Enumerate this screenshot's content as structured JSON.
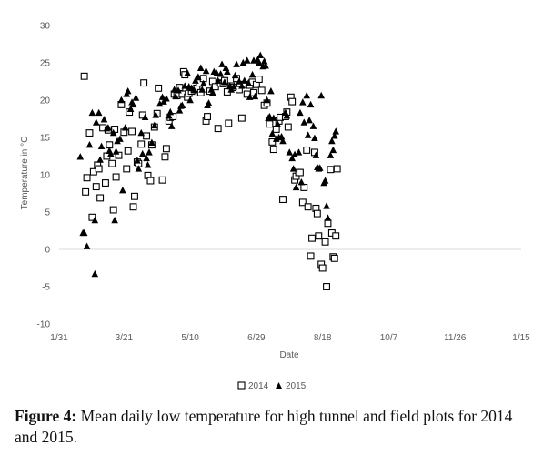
{
  "chart_data": {
    "type": "scatter",
    "title": "",
    "xlabel": "Date",
    "ylabel": "Temperature in °C",
    "xlim": [
      "2015-01-31",
      "2016-01-15"
    ],
    "ylim": [
      -10,
      30
    ],
    "x_tick_labels": [
      "1/31",
      "3/21",
      "5/10",
      "6/29",
      "8/18",
      "10/7",
      "11/26",
      "1/15"
    ],
    "x_tick_dates": [
      "2015-01-31",
      "2015-03-21",
      "2015-05-10",
      "2015-06-29",
      "2015-08-18",
      "2015-10-07",
      "2015-11-26",
      "2016-01-15"
    ],
    "y_ticks": [
      -10,
      -5,
      0,
      5,
      10,
      15,
      20,
      25,
      30
    ],
    "grid": false,
    "legend_position": "bottom",
    "series": [
      {
        "name": "2014",
        "marker": "hollow-square",
        "color": "#000000",
        "points": [
          [
            "2015-02-19",
            23.2
          ],
          [
            "2015-02-20",
            7.7
          ],
          [
            "2015-02-21",
            9.6
          ],
          [
            "2015-02-23",
            15.6
          ],
          [
            "2015-02-25",
            4.3
          ],
          [
            "2015-02-26",
            10.4
          ],
          [
            "2015-02-28",
            8.4
          ],
          [
            "2015-03-01",
            11.3
          ],
          [
            "2015-03-02",
            10.8
          ],
          [
            "2015-03-03",
            6.9
          ],
          [
            "2015-03-05",
            16.3
          ],
          [
            "2015-03-07",
            8.9
          ],
          [
            "2015-03-08",
            12.5
          ],
          [
            "2015-03-09",
            16.0
          ],
          [
            "2015-03-10",
            14.0
          ],
          [
            "2015-03-12",
            11.5
          ],
          [
            "2015-03-13",
            5.3
          ],
          [
            "2015-03-14",
            16.1
          ],
          [
            "2015-03-15",
            9.7
          ],
          [
            "2015-03-17",
            12.6
          ],
          [
            "2015-03-19",
            19.4
          ],
          [
            "2015-03-21",
            15.7
          ],
          [
            "2015-03-23",
            10.8
          ],
          [
            "2015-03-24",
            13.2
          ],
          [
            "2015-03-25",
            18.4
          ],
          [
            "2015-03-27",
            15.8
          ],
          [
            "2015-03-28",
            5.7
          ],
          [
            "2015-03-29",
            7.1
          ],
          [
            "2015-03-31",
            11.7
          ],
          [
            "2015-04-01",
            11.5
          ],
          [
            "2015-04-03",
            14.1
          ],
          [
            "2015-04-04",
            18.0
          ],
          [
            "2015-04-05",
            22.3
          ],
          [
            "2015-04-07",
            15.2
          ],
          [
            "2015-04-08",
            9.9
          ],
          [
            "2015-04-10",
            9.2
          ],
          [
            "2015-04-11",
            14.0
          ],
          [
            "2015-04-13",
            16.4
          ],
          [
            "2015-04-15",
            18.2
          ],
          [
            "2015-04-16",
            21.6
          ],
          [
            "2015-04-19",
            9.3
          ],
          [
            "2015-04-21",
            12.4
          ],
          [
            "2015-04-22",
            13.5
          ],
          [
            "2015-04-24",
            17.2
          ],
          [
            "2015-04-25",
            17.7
          ],
          [
            "2015-04-27",
            17.8
          ],
          [
            "2015-04-28",
            20.8
          ],
          [
            "2015-04-30",
            20.6
          ],
          [
            "2015-05-02",
            21.7
          ],
          [
            "2015-05-04",
            20.8
          ],
          [
            "2015-05-05",
            23.8
          ],
          [
            "2015-05-06",
            23.4
          ],
          [
            "2015-05-08",
            20.4
          ],
          [
            "2015-05-09",
            20.9
          ],
          [
            "2015-05-11",
            21.2
          ],
          [
            "2015-05-13",
            21.5
          ],
          [
            "2015-05-15",
            21.6
          ],
          [
            "2015-05-17",
            22.3
          ],
          [
            "2015-05-18",
            21.0
          ],
          [
            "2015-05-20",
            22.9
          ],
          [
            "2015-05-22",
            17.2
          ],
          [
            "2015-05-23",
            17.8
          ],
          [
            "2015-05-25",
            21.2
          ],
          [
            "2015-05-27",
            22.5
          ],
          [
            "2015-05-29",
            21.8
          ],
          [
            "2015-05-31",
            16.2
          ],
          [
            "2015-06-02",
            22.3
          ],
          [
            "2015-06-04",
            22.2
          ],
          [
            "2015-06-05",
            22.6
          ],
          [
            "2015-06-07",
            21.1
          ],
          [
            "2015-06-08",
            16.9
          ],
          [
            "2015-06-10",
            21.9
          ],
          [
            "2015-06-12",
            21.7
          ],
          [
            "2015-06-14",
            22.9
          ],
          [
            "2015-06-16",
            21.4
          ],
          [
            "2015-06-18",
            17.6
          ],
          [
            "2015-06-20",
            22.1
          ],
          [
            "2015-06-22",
            20.8
          ],
          [
            "2015-06-24",
            22.0
          ],
          [
            "2015-06-26",
            22.4
          ],
          [
            "2015-06-27",
            21.0
          ],
          [
            "2015-06-29",
            22.1
          ],
          [
            "2015-07-01",
            22.8
          ],
          [
            "2015-07-03",
            21.3
          ],
          [
            "2015-07-05",
            19.3
          ],
          [
            "2015-07-07",
            19.6
          ],
          [
            "2015-07-09",
            16.8
          ],
          [
            "2015-07-11",
            14.4
          ],
          [
            "2015-07-12",
            13.4
          ],
          [
            "2015-07-14",
            16.1
          ],
          [
            "2015-07-16",
            17.2
          ],
          [
            "2015-07-17",
            17.7
          ],
          [
            "2015-07-19",
            6.7
          ],
          [
            "2015-07-21",
            17.8
          ],
          [
            "2015-07-22",
            18.4
          ],
          [
            "2015-07-23",
            16.4
          ],
          [
            "2015-07-25",
            20.4
          ],
          [
            "2015-07-26",
            19.8
          ],
          [
            "2015-07-28",
            9.3
          ],
          [
            "2015-07-29",
            9.8
          ],
          [
            "2015-07-31",
            10.3
          ],
          [
            "2015-08-01",
            10.3
          ],
          [
            "2015-08-03",
            6.3
          ],
          [
            "2015-08-04",
            8.3
          ],
          [
            "2015-08-06",
            13.3
          ],
          [
            "2015-08-07",
            5.7
          ],
          [
            "2015-08-09",
            -0.9
          ],
          [
            "2015-08-10",
            1.5
          ],
          [
            "2015-08-12",
            13.0
          ],
          [
            "2015-08-13",
            5.5
          ],
          [
            "2015-08-14",
            4.8
          ],
          [
            "2015-08-15",
            1.8
          ],
          [
            "2015-08-17",
            -2.0
          ],
          [
            "2015-08-18",
            -2.5
          ],
          [
            "2015-08-20",
            1.0
          ],
          [
            "2015-08-21",
            -5.0
          ],
          [
            "2015-08-22",
            3.5
          ],
          [
            "2015-08-24",
            10.7
          ],
          [
            "2015-08-25",
            2.2
          ],
          [
            "2015-08-26",
            -1.0
          ],
          [
            "2015-08-27",
            -1.2
          ],
          [
            "2015-08-28",
            1.8
          ],
          [
            "2015-08-29",
            10.8
          ]
        ]
      },
      {
        "name": "2015",
        "marker": "filled-triangle",
        "color": "#000000",
        "points": [
          [
            "2015-02-16",
            12.4
          ],
          [
            "2015-02-18",
            2.2
          ],
          [
            "2015-02-19",
            2.2
          ],
          [
            "2015-02-21",
            0.4
          ],
          [
            "2015-02-23",
            14.0
          ],
          [
            "2015-02-25",
            18.3
          ],
          [
            "2015-02-27",
            3.9
          ],
          [
            "2015-02-27",
            -3.3
          ],
          [
            "2015-02-28",
            17.0
          ],
          [
            "2015-03-02",
            18.3
          ],
          [
            "2015-03-03",
            12.0
          ],
          [
            "2015-03-04",
            13.8
          ],
          [
            "2015-03-06",
            17.4
          ],
          [
            "2015-03-08",
            16.2
          ],
          [
            "2015-03-09",
            16.3
          ],
          [
            "2015-03-10",
            13.2
          ],
          [
            "2015-03-11",
            12.8
          ],
          [
            "2015-03-13",
            15.6
          ],
          [
            "2015-03-14",
            3.9
          ],
          [
            "2015-03-15",
            13.1
          ],
          [
            "2015-03-16",
            14.5
          ],
          [
            "2015-03-18",
            14.8
          ],
          [
            "2015-03-19",
            20.0
          ],
          [
            "2015-03-20",
            7.9
          ],
          [
            "2015-03-22",
            16.3
          ],
          [
            "2015-03-23",
            20.8
          ],
          [
            "2015-03-24",
            21.2
          ],
          [
            "2015-03-26",
            18.8
          ],
          [
            "2015-03-27",
            19.7
          ],
          [
            "2015-03-28",
            19.4
          ],
          [
            "2015-03-30",
            20.3
          ],
          [
            "2015-03-31",
            11.9
          ],
          [
            "2015-04-01",
            10.8
          ],
          [
            "2015-04-03",
            15.6
          ],
          [
            "2015-04-04",
            12.8
          ],
          [
            "2015-04-06",
            17.7
          ],
          [
            "2015-04-07",
            12.2
          ],
          [
            "2015-04-08",
            11.3
          ],
          [
            "2015-04-09",
            13.0
          ],
          [
            "2015-04-11",
            14.3
          ],
          [
            "2015-04-13",
            16.6
          ],
          [
            "2015-04-14",
            18.0
          ],
          [
            "2015-04-17",
            19.5
          ],
          [
            "2015-04-19",
            20.4
          ],
          [
            "2015-04-20",
            19.8
          ],
          [
            "2015-04-22",
            20.2
          ],
          [
            "2015-04-24",
            17.9
          ],
          [
            "2015-04-25",
            18.4
          ],
          [
            "2015-04-26",
            16.5
          ],
          [
            "2015-04-28",
            21.4
          ],
          [
            "2015-04-29",
            20.5
          ],
          [
            "2015-05-01",
            21.3
          ],
          [
            "2015-05-02",
            18.6
          ],
          [
            "2015-05-03",
            19.2
          ],
          [
            "2015-05-04",
            19.3
          ],
          [
            "2015-05-06",
            21.9
          ],
          [
            "2015-05-08",
            23.6
          ],
          [
            "2015-05-09",
            21.8
          ],
          [
            "2015-05-10",
            20.0
          ],
          [
            "2015-05-11",
            21.6
          ],
          [
            "2015-05-13",
            21.3
          ],
          [
            "2015-05-14",
            22.6
          ],
          [
            "2015-05-16",
            23.1
          ],
          [
            "2015-05-18",
            24.3
          ],
          [
            "2015-05-19",
            21.4
          ],
          [
            "2015-05-20",
            22.2
          ],
          [
            "2015-05-22",
            23.9
          ],
          [
            "2015-05-23",
            19.3
          ],
          [
            "2015-05-24",
            19.6
          ],
          [
            "2015-05-26",
            21.4
          ],
          [
            "2015-05-27",
            21.0
          ],
          [
            "2015-05-28",
            23.8
          ],
          [
            "2015-05-30",
            23.6
          ],
          [
            "2015-05-31",
            22.6
          ],
          [
            "2015-06-02",
            23.5
          ],
          [
            "2015-06-03",
            24.8
          ],
          [
            "2015-06-05",
            22.4
          ],
          [
            "2015-06-06",
            24.3
          ],
          [
            "2015-06-07",
            23.8
          ],
          [
            "2015-06-09",
            21.9
          ],
          [
            "2015-06-10",
            21.4
          ],
          [
            "2015-06-12",
            21.8
          ],
          [
            "2015-06-13",
            23.3
          ],
          [
            "2015-06-14",
            24.8
          ],
          [
            "2015-06-16",
            22.5
          ],
          [
            "2015-06-18",
            21.9
          ],
          [
            "2015-06-19",
            25.0
          ],
          [
            "2015-06-20",
            22.6
          ],
          [
            "2015-06-22",
            25.3
          ],
          [
            "2015-06-23",
            22.3
          ],
          [
            "2015-06-24",
            20.4
          ],
          [
            "2015-06-26",
            23.4
          ],
          [
            "2015-06-27",
            25.3
          ],
          [
            "2015-06-28",
            20.5
          ],
          [
            "2015-06-30",
            25.4
          ],
          [
            "2015-07-01",
            25.0
          ],
          [
            "2015-07-02",
            26.0
          ],
          [
            "2015-07-04",
            24.5
          ],
          [
            "2015-07-05",
            25.2
          ],
          [
            "2015-07-06",
            24.6
          ],
          [
            "2015-07-07",
            20.0
          ],
          [
            "2015-07-08",
            17.6
          ],
          [
            "2015-07-09",
            17.8
          ],
          [
            "2015-07-10",
            21.2
          ],
          [
            "2015-07-11",
            15.5
          ],
          [
            "2015-07-12",
            17.6
          ],
          [
            "2015-07-14",
            14.8
          ],
          [
            "2015-07-15",
            16.8
          ],
          [
            "2015-07-16",
            15.0
          ],
          [
            "2015-07-18",
            15.1
          ],
          [
            "2015-07-19",
            14.5
          ],
          [
            "2015-07-21",
            18.3
          ],
          [
            "2015-07-22",
            17.9
          ],
          [
            "2015-07-24",
            13.0
          ],
          [
            "2015-07-26",
            12.2
          ],
          [
            "2015-07-27",
            10.8
          ],
          [
            "2015-07-28",
            12.7
          ],
          [
            "2015-07-29",
            8.3
          ],
          [
            "2015-07-31",
            13.0
          ],
          [
            "2015-08-01",
            18.3
          ],
          [
            "2015-08-02",
            9.0
          ],
          [
            "2015-08-03",
            19.7
          ],
          [
            "2015-08-04",
            17.0
          ],
          [
            "2015-08-06",
            20.6
          ],
          [
            "2015-08-07",
            15.3
          ],
          [
            "2015-08-08",
            17.3
          ],
          [
            "2015-08-09",
            19.4
          ],
          [
            "2015-08-11",
            16.5
          ],
          [
            "2015-08-12",
            14.9
          ],
          [
            "2015-08-13",
            12.6
          ],
          [
            "2015-08-14",
            11.0
          ],
          [
            "2015-08-15",
            10.8
          ],
          [
            "2015-08-16",
            10.9
          ],
          [
            "2015-08-17",
            20.6
          ],
          [
            "2015-08-19",
            8.9
          ],
          [
            "2015-08-20",
            9.2
          ],
          [
            "2015-08-21",
            5.8
          ],
          [
            "2015-08-22",
            4.2
          ],
          [
            "2015-08-24",
            12.6
          ],
          [
            "2015-08-25",
            14.5
          ],
          [
            "2015-08-26",
            13.3
          ],
          [
            "2015-08-27",
            15.2
          ],
          [
            "2015-08-28",
            15.8
          ]
        ]
      }
    ]
  },
  "caption": {
    "label": "Figure 4:",
    "text": " Mean daily low temperature for high tunnel and field plots for 2014 and 2015."
  }
}
